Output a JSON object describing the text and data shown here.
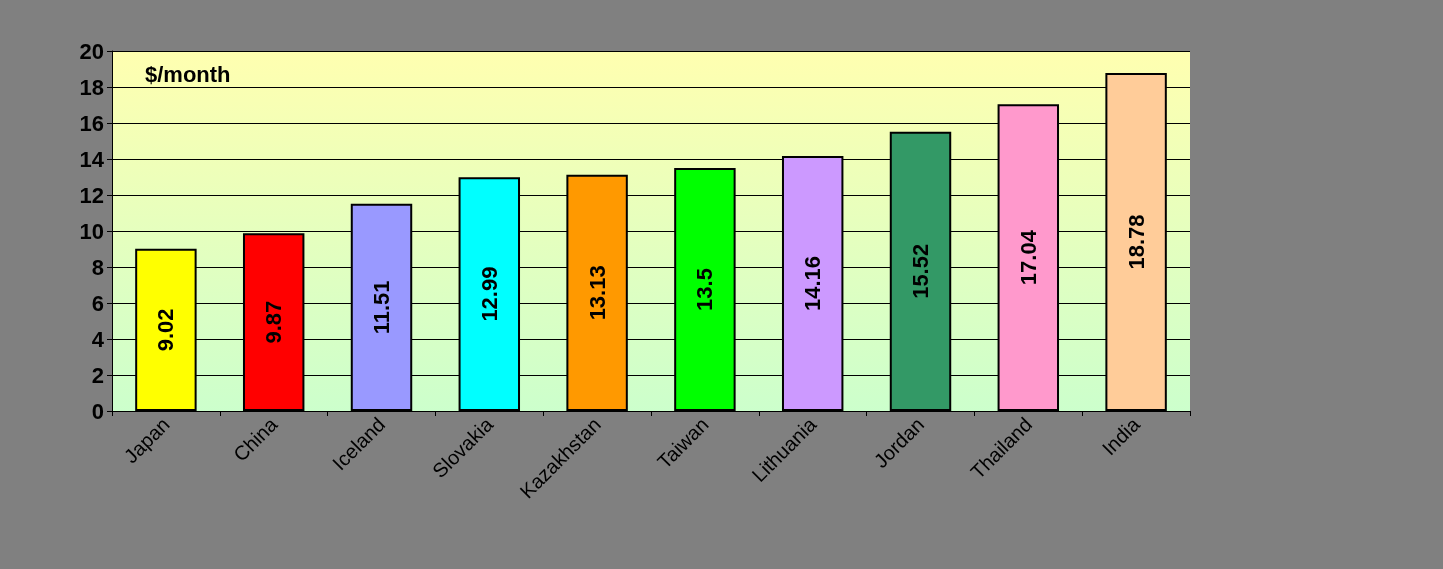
{
  "chart_data": {
    "type": "bar",
    "ylabel": "$/month",
    "categories": [
      "Japan",
      "China",
      "Iceland",
      "Slovakia",
      "Kazakhstan",
      "Taiwan",
      "Lithuania",
      "Jordan",
      "Thailand",
      "India"
    ],
    "values": [
      9.02,
      9.87,
      11.51,
      12.99,
      13.13,
      13.5,
      14.16,
      15.52,
      17.04,
      18.78
    ],
    "colors": [
      "#ffff00",
      "#ff0000",
      "#9999ff",
      "#00ffff",
      "#ff9900",
      "#00ff00",
      "#cc99ff",
      "#339966",
      "#ff99cc",
      "#ffcc99"
    ],
    "ylim": [
      0,
      20
    ],
    "yticks": [
      0,
      2,
      4,
      6,
      8,
      10,
      12,
      14,
      16,
      18,
      20
    ],
    "grid": "y",
    "data_labels": true
  }
}
